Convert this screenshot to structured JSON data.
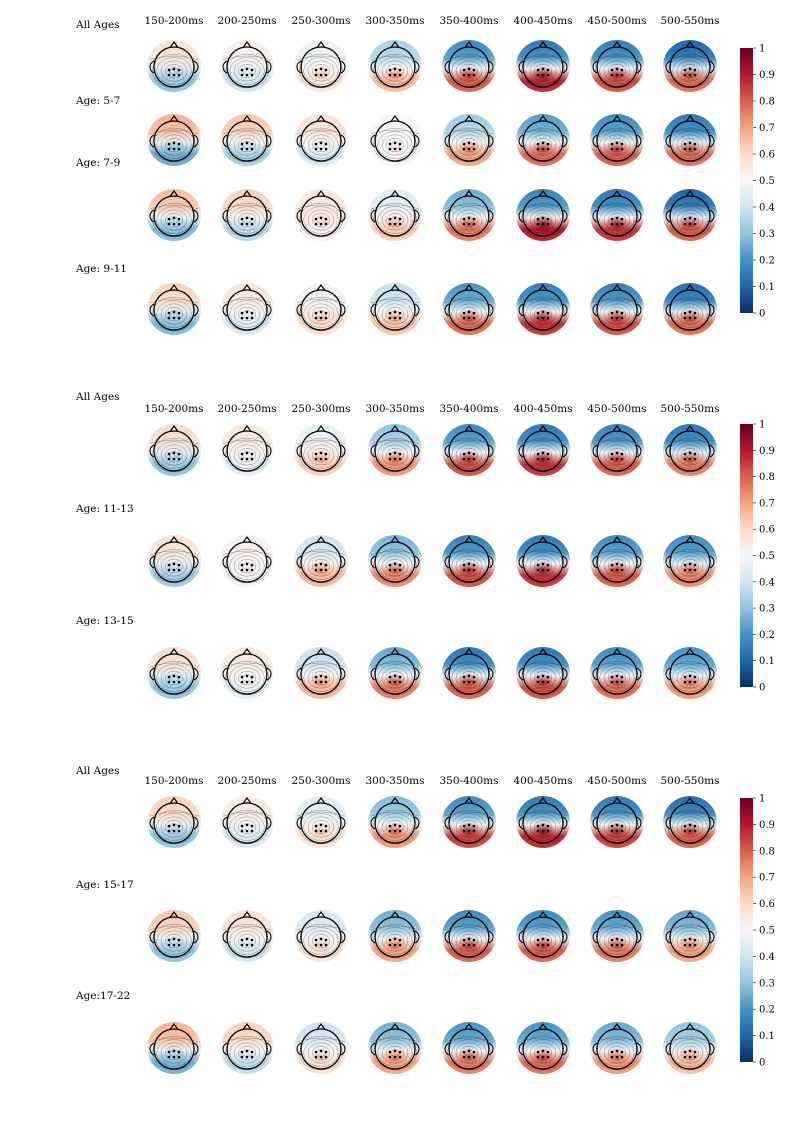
{
  "chart_data": {
    "type": "heatmap",
    "description_kind": "scalp topographic maps",
    "time_windows": [
      "150-200ms",
      "200-250ms",
      "250-300ms",
      "300-350ms",
      "350-400ms",
      "400-450ms",
      "450-500ms",
      "500-550ms"
    ],
    "colorbar": {
      "ticks": [
        "0",
        "0.1",
        "0.2",
        "0.3",
        "0.4",
        "0.5",
        "0.6",
        "0.7",
        "0.8",
        "0.9",
        "1"
      ],
      "range": [
        0,
        1
      ],
      "colors": [
        "#053061",
        "#2166ac",
        "#4393c3",
        "#92c5de",
        "#d1e5f0",
        "#f7f7f7",
        "#fddbc7",
        "#f4a582",
        "#d6604d",
        "#b2182b",
        "#67001f"
      ]
    },
    "panels": [
      {
        "rows": [
          {
            "label": "All Ages",
            "values": [
              [
                0.58,
                0.3
              ],
              [
                0.53,
                0.4
              ],
              [
                0.47,
                0.56
              ],
              [
                0.34,
                0.66
              ],
              [
                0.18,
                0.8
              ],
              [
                0.14,
                0.88
              ],
              [
                0.15,
                0.82
              ],
              [
                0.1,
                0.78
              ]
            ]
          },
          {
            "label": "Age: 5-7",
            "values": [
              [
                0.68,
                0.25
              ],
              [
                0.64,
                0.33
              ],
              [
                0.58,
                0.42
              ],
              [
                0.5,
                0.5
              ],
              [
                0.32,
                0.7
              ],
              [
                0.22,
                0.78
              ],
              [
                0.18,
                0.8
              ],
              [
                0.14,
                0.78
              ]
            ]
          },
          {
            "label": "Age: 7-9",
            "values": [
              [
                0.66,
                0.28
              ],
              [
                0.62,
                0.36
              ],
              [
                0.55,
                0.52
              ],
              [
                0.44,
                0.62
              ],
              [
                0.25,
                0.76
              ],
              [
                0.16,
                0.9
              ],
              [
                0.14,
                0.86
              ],
              [
                0.1,
                0.8
              ]
            ]
          },
          {
            "label": "Age: 9-11",
            "values": [
              [
                0.62,
                0.28
              ],
              [
                0.56,
                0.42
              ],
              [
                0.48,
                0.58
              ],
              [
                0.38,
                0.64
              ],
              [
                0.2,
                0.78
              ],
              [
                0.15,
                0.86
              ],
              [
                0.16,
                0.82
              ],
              [
                0.12,
                0.78
              ]
            ]
          }
        ]
      },
      {
        "rows": [
          {
            "label": "All Ages",
            "values": [
              [
                0.6,
                0.3
              ],
              [
                0.55,
                0.45
              ],
              [
                0.46,
                0.62
              ],
              [
                0.3,
                0.72
              ],
              [
                0.18,
                0.82
              ],
              [
                0.14,
                0.86
              ],
              [
                0.16,
                0.8
              ],
              [
                0.14,
                0.76
              ]
            ]
          },
          {
            "label": "Age: 11-13",
            "values": [
              [
                0.58,
                0.32
              ],
              [
                0.52,
                0.48
              ],
              [
                0.4,
                0.66
              ],
              [
                0.26,
                0.74
              ],
              [
                0.16,
                0.82
              ],
              [
                0.14,
                0.86
              ],
              [
                0.18,
                0.8
              ],
              [
                0.18,
                0.74
              ]
            ]
          },
          {
            "label": "Age: 13-15",
            "values": [
              [
                0.6,
                0.3
              ],
              [
                0.55,
                0.46
              ],
              [
                0.38,
                0.66
              ],
              [
                0.24,
                0.76
              ],
              [
                0.14,
                0.8
              ],
              [
                0.14,
                0.82
              ],
              [
                0.18,
                0.78
              ],
              [
                0.2,
                0.72
              ]
            ]
          }
        ]
      },
      {
        "rows": [
          {
            "label": "All Ages",
            "values": [
              [
                0.62,
                0.3
              ],
              [
                0.55,
                0.42
              ],
              [
                0.44,
                0.58
              ],
              [
                0.28,
                0.72
              ],
              [
                0.18,
                0.84
              ],
              [
                0.14,
                0.88
              ],
              [
                0.14,
                0.84
              ],
              [
                0.12,
                0.8
              ]
            ]
          },
          {
            "label": "Age: 15-17",
            "values": [
              [
                0.64,
                0.3
              ],
              [
                0.58,
                0.4
              ],
              [
                0.42,
                0.56
              ],
              [
                0.26,
                0.7
              ],
              [
                0.18,
                0.8
              ],
              [
                0.18,
                0.8
              ],
              [
                0.2,
                0.76
              ],
              [
                0.24,
                0.7
              ]
            ]
          },
          {
            "label": "Age:17-22",
            "values": [
              [
                0.68,
                0.26
              ],
              [
                0.62,
                0.38
              ],
              [
                0.4,
                0.58
              ],
              [
                0.26,
                0.7
              ],
              [
                0.2,
                0.76
              ],
              [
                0.2,
                0.78
              ],
              [
                0.24,
                0.72
              ],
              [
                0.3,
                0.66
              ]
            ]
          }
        ]
      }
    ]
  }
}
